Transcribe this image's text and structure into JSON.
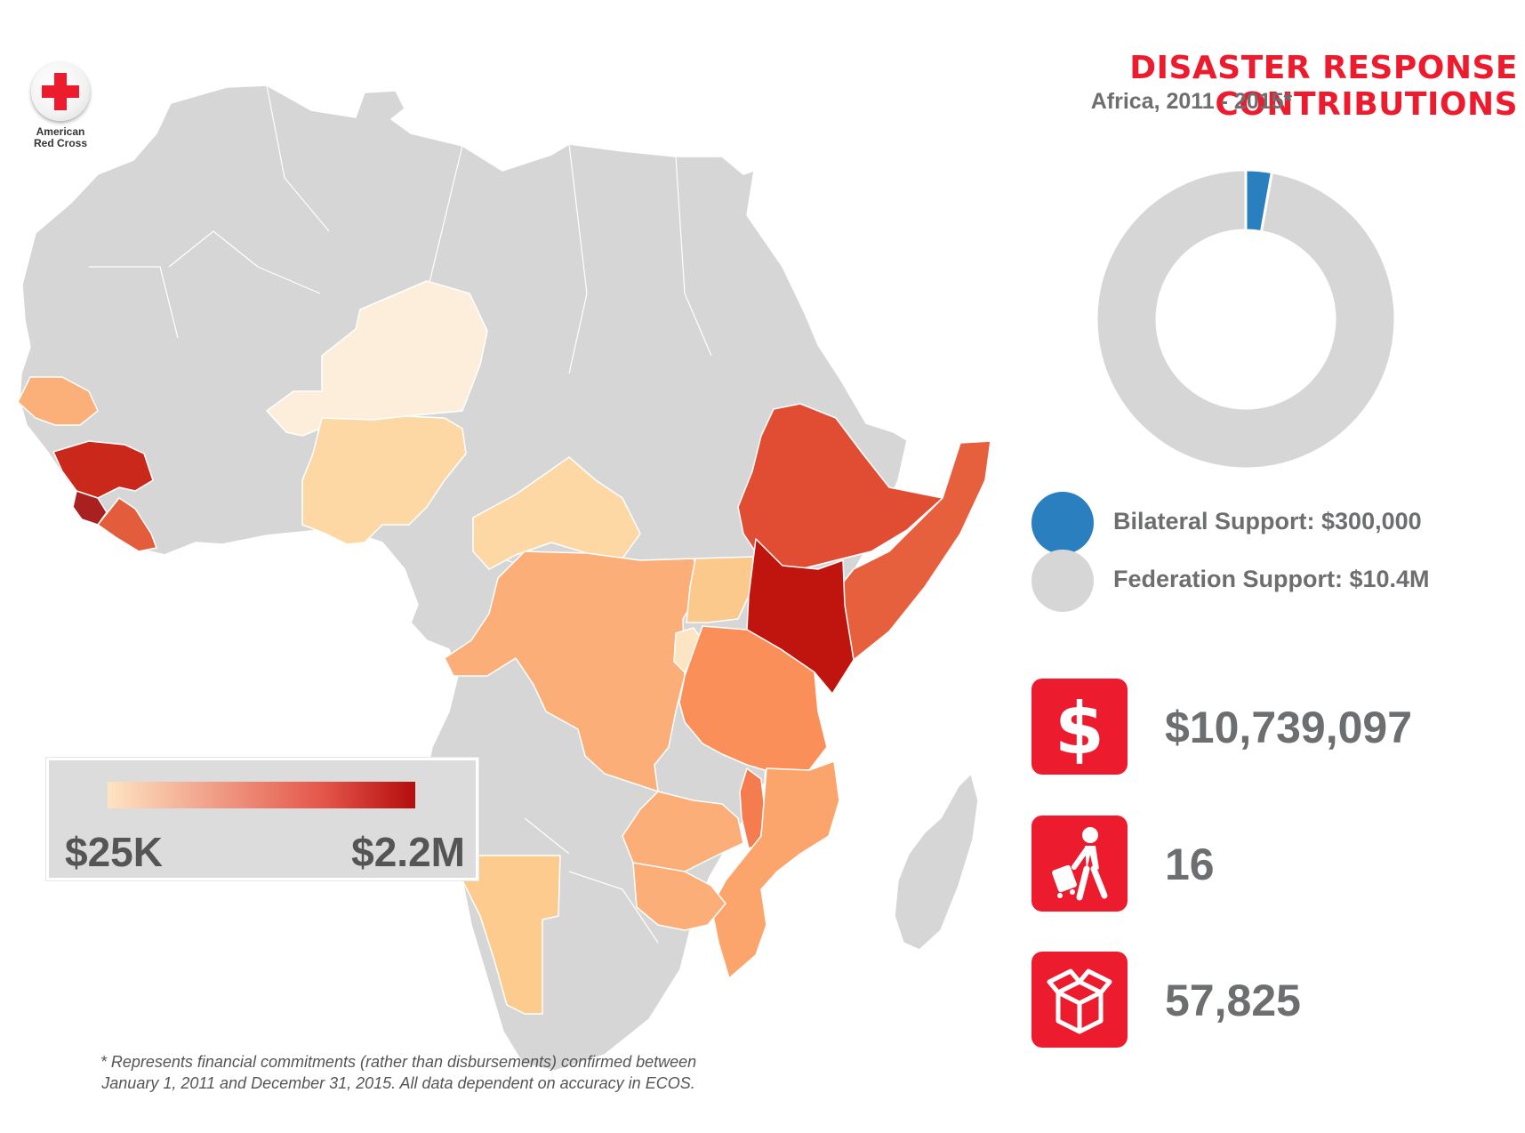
{
  "logo": {
    "line1": "American",
    "line2": "Red Cross"
  },
  "header": {
    "title": "DISASTER RESPONSE CONTRIBUTIONS",
    "subtitle": "Africa, 2011 - 2015*"
  },
  "colors": {
    "brand_red": "#ed1b2e",
    "text_gray": "#6d6e70",
    "land_gray": "#d6d6d6",
    "bilateral_blue": "#2a7fbf",
    "federation_gray": "#d6d6d6"
  },
  "donut": {
    "segments": [
      {
        "label": "Bilateral Support: $300,000",
        "value": 300000,
        "color": "#2a7fbf"
      },
      {
        "label": "Federation Support: $10.4M",
        "value": 10400000,
        "color": "#d6d6d6"
      }
    ]
  },
  "stats": [
    {
      "icon": "dollar-icon",
      "value": "$10,739,097"
    },
    {
      "icon": "traveler-icon",
      "value": "16"
    },
    {
      "icon": "box-icon",
      "value": "57,825"
    }
  ],
  "scale": {
    "min_label": "$25K",
    "max_label": "$2.2M",
    "min_color": "#fde4c2",
    "max_color": "#b40d0d"
  },
  "footnote": {
    "line1": "* Represents financial commitments (rather than disbursements) confirmed between",
    "line2": "January 1, 2011 and December 31, 2015. All data dependent on accuracy in ECOS."
  }
}
